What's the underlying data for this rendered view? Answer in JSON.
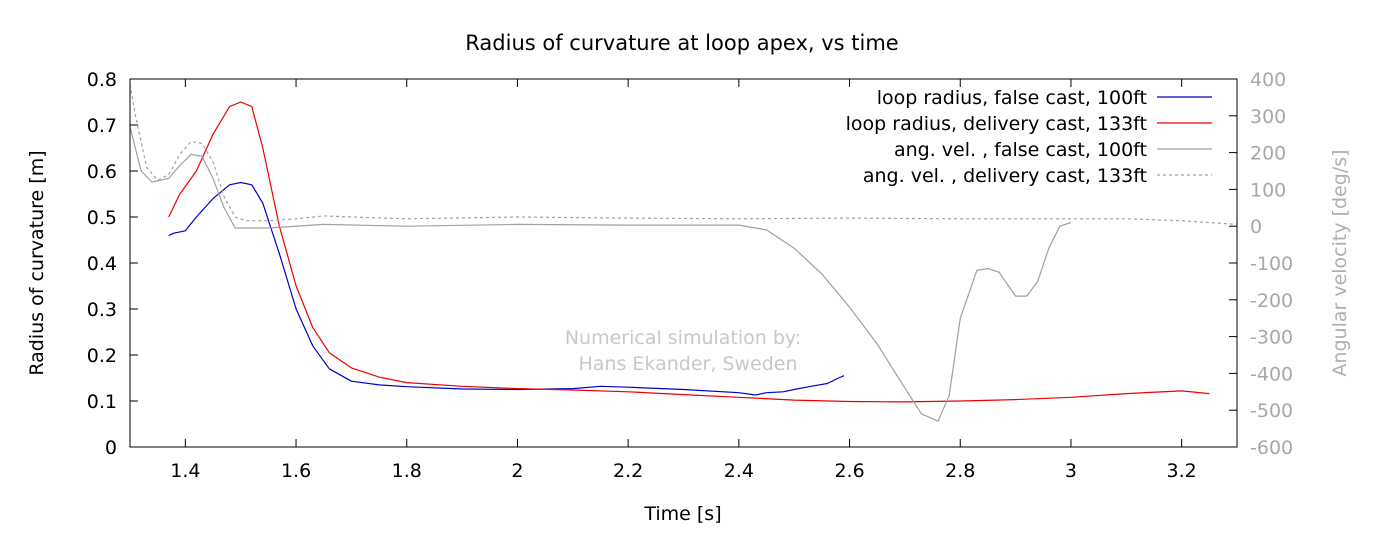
{
  "chart_data": {
    "type": "line",
    "title": "Radius of curvature at loop apex, vs time",
    "xlabel": "Time [s]",
    "ylabel": "Radius of curvature [m]",
    "y2label": "Angular velocity [deg/s]",
    "xlim": [
      1.3,
      3.3
    ],
    "ylim": [
      0,
      0.8
    ],
    "y2lim": [
      -600,
      400
    ],
    "xticks": [
      1.4,
      1.6,
      1.8,
      2,
      2.2,
      2.4,
      2.6,
      2.8,
      3,
      3.2
    ],
    "xtick_labels": [
      "1.4",
      "1.6",
      "1.8",
      "2",
      "2.2",
      "2.4",
      "2.6",
      "2.8",
      "3",
      "3.2"
    ],
    "yticks": [
      0,
      0.1,
      0.2,
      0.3,
      0.4,
      0.5,
      0.6,
      0.7,
      0.8
    ],
    "ytick_labels": [
      "0",
      "0.1",
      "0.2",
      "0.3",
      "0.4",
      "0.5",
      "0.6",
      "0.7",
      "0.8"
    ],
    "y2ticks": [
      -600,
      -500,
      -400,
      -300,
      -200,
      -100,
      0,
      100,
      200,
      300,
      400
    ],
    "y2tick_labels": [
      "-600",
      "-500",
      "-400",
      "-300",
      "-200",
      "-100",
      "0",
      "100",
      "200",
      "300",
      "400"
    ],
    "legend_position": "top-right",
    "annotation": [
      "Numerical simulation by:",
      "Hans Ekander, Sweden"
    ],
    "series": [
      {
        "name": "loop radius, false cast, 100ft",
        "axis": "left",
        "color": "#0000cc",
        "style": "solid",
        "points": [
          [
            1.37,
            0.46
          ],
          [
            1.38,
            0.465
          ],
          [
            1.4,
            0.47
          ],
          [
            1.42,
            0.5
          ],
          [
            1.45,
            0.54
          ],
          [
            1.48,
            0.57
          ],
          [
            1.5,
            0.575
          ],
          [
            1.52,
            0.57
          ],
          [
            1.54,
            0.53
          ],
          [
            1.57,
            0.42
          ],
          [
            1.6,
            0.3
          ],
          [
            1.63,
            0.22
          ],
          [
            1.66,
            0.17
          ],
          [
            1.7,
            0.143
          ],
          [
            1.75,
            0.135
          ],
          [
            1.8,
            0.131
          ],
          [
            1.9,
            0.126
          ],
          [
            2.0,
            0.125
          ],
          [
            2.1,
            0.127
          ],
          [
            2.15,
            0.132
          ],
          [
            2.2,
            0.13
          ],
          [
            2.3,
            0.125
          ],
          [
            2.4,
            0.118
          ],
          [
            2.43,
            0.113
          ],
          [
            2.45,
            0.118
          ],
          [
            2.48,
            0.12
          ],
          [
            2.5,
            0.125
          ],
          [
            2.53,
            0.132
          ],
          [
            2.56,
            0.138
          ],
          [
            2.58,
            0.15
          ],
          [
            2.59,
            0.155
          ]
        ]
      },
      {
        "name": "loop radius, delivery cast, 133ft",
        "axis": "left",
        "color": "#ee0000",
        "style": "solid",
        "points": [
          [
            1.37,
            0.5
          ],
          [
            1.39,
            0.55
          ],
          [
            1.42,
            0.6
          ],
          [
            1.45,
            0.68
          ],
          [
            1.48,
            0.74
          ],
          [
            1.5,
            0.75
          ],
          [
            1.52,
            0.74
          ],
          [
            1.54,
            0.65
          ],
          [
            1.57,
            0.48
          ],
          [
            1.6,
            0.35
          ],
          [
            1.63,
            0.26
          ],
          [
            1.66,
            0.205
          ],
          [
            1.7,
            0.172
          ],
          [
            1.75,
            0.152
          ],
          [
            1.8,
            0.14
          ],
          [
            1.9,
            0.132
          ],
          [
            2.0,
            0.127
          ],
          [
            2.1,
            0.124
          ],
          [
            2.2,
            0.12
          ],
          [
            2.3,
            0.114
          ],
          [
            2.4,
            0.108
          ],
          [
            2.5,
            0.102
          ],
          [
            2.6,
            0.099
          ],
          [
            2.7,
            0.098
          ],
          [
            2.8,
            0.1
          ],
          [
            2.9,
            0.103
          ],
          [
            3.0,
            0.108
          ],
          [
            3.1,
            0.116
          ],
          [
            3.2,
            0.122
          ],
          [
            3.25,
            0.116
          ]
        ]
      },
      {
        "name": "ang. vel. , false cast, 100ft",
        "axis": "right",
        "color": "#a0a0a0",
        "style": "solid",
        "points": [
          [
            1.3,
            270
          ],
          [
            1.32,
            150
          ],
          [
            1.34,
            120
          ],
          [
            1.37,
            130
          ],
          [
            1.39,
            165
          ],
          [
            1.41,
            195
          ],
          [
            1.43,
            190
          ],
          [
            1.45,
            130
          ],
          [
            1.47,
            50
          ],
          [
            1.49,
            -5
          ],
          [
            1.55,
            -5
          ],
          [
            1.65,
            5
          ],
          [
            1.8,
            0
          ],
          [
            2.0,
            5
          ],
          [
            2.2,
            3
          ],
          [
            2.4,
            3
          ],
          [
            2.45,
            -10
          ],
          [
            2.5,
            -60
          ],
          [
            2.55,
            -130
          ],
          [
            2.6,
            -220
          ],
          [
            2.65,
            -320
          ],
          [
            2.7,
            -440
          ],
          [
            2.73,
            -510
          ],
          [
            2.76,
            -530
          ],
          [
            2.78,
            -460
          ],
          [
            2.8,
            -250
          ],
          [
            2.83,
            -120
          ],
          [
            2.85,
            -115
          ],
          [
            2.87,
            -125
          ],
          [
            2.9,
            -190
          ],
          [
            2.92,
            -190
          ],
          [
            2.94,
            -150
          ],
          [
            2.96,
            -60
          ],
          [
            2.98,
            0
          ],
          [
            3.0,
            10
          ]
        ]
      },
      {
        "name": "ang. vel. , delivery cast, 133ft",
        "axis": "right",
        "color": "#a0a0a0",
        "style": "dashed",
        "points": [
          [
            1.3,
            385
          ],
          [
            1.31,
            300
          ],
          [
            1.33,
            160
          ],
          [
            1.35,
            125
          ],
          [
            1.37,
            140
          ],
          [
            1.39,
            195
          ],
          [
            1.41,
            230
          ],
          [
            1.43,
            225
          ],
          [
            1.45,
            175
          ],
          [
            1.47,
            80
          ],
          [
            1.49,
            25
          ],
          [
            1.51,
            15
          ],
          [
            1.55,
            15
          ],
          [
            1.6,
            20
          ],
          [
            1.65,
            28
          ],
          [
            1.7,
            25
          ],
          [
            1.8,
            20
          ],
          [
            2.0,
            25
          ],
          [
            2.2,
            22
          ],
          [
            2.4,
            20
          ],
          [
            2.6,
            22
          ],
          [
            2.8,
            20
          ],
          [
            3.0,
            20
          ],
          [
            3.1,
            20
          ],
          [
            3.2,
            15
          ],
          [
            3.3,
            5
          ]
        ]
      }
    ]
  }
}
